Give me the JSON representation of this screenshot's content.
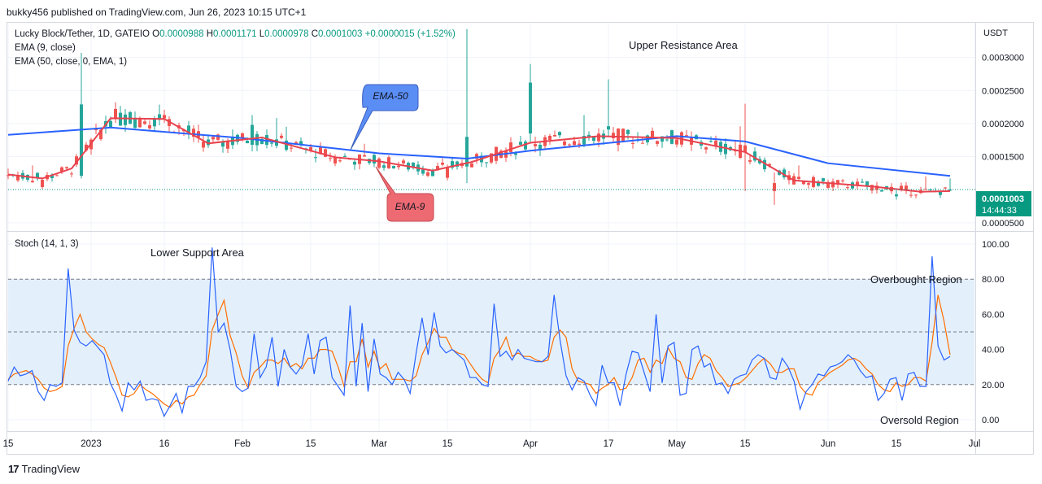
{
  "header": {
    "publisher": "bukky456 published on TradingView.com, Jun 26, 2023 10:15 UTC+1"
  },
  "legend": {
    "symbol": "Lucky Block/Tether, 1D, GATEIO",
    "o_label": "O",
    "o_value": "0.0000988",
    "h_label": "H",
    "h_value": "0.0001171",
    "l_label": "L",
    "l_value": "0.0000978",
    "c_label": "C",
    "c_value": "0.0001003",
    "change": "+0.0000015 (+1.52%)",
    "ema9": "EMA (9, close)",
    "ema50": "EMA (50, close, 0, EMA, 1)",
    "stoch": "Stoch (14, 1, 3)"
  },
  "annotations": {
    "upper": "Upper Resistance Area",
    "lower": "Lower Support Area",
    "overbought": "Overbought Region",
    "oversold": "Oversold Region",
    "ema50_callout": "EMA-50",
    "ema9_callout": "EMA-9"
  },
  "price_axis": {
    "currency": "USDT",
    "labels": [
      "0.0003000",
      "0.0002500",
      "0.0002000",
      "0.0001500",
      "0.0000500"
    ],
    "last_price": "0.0001003",
    "countdown": "14:44:33"
  },
  "stoch_axis": {
    "labels": [
      "100.00",
      "80.00",
      "60.00",
      "40.00",
      "20.00",
      "0.00"
    ]
  },
  "time_axis": {
    "labels": [
      "15",
      "2023",
      "16",
      "Feb",
      "15",
      "Mar",
      "15",
      "Apr",
      "17",
      "May",
      "15",
      "Jun",
      "15",
      "Jul"
    ]
  },
  "footer": {
    "brand": "TradingView"
  },
  "colors": {
    "up": "#26a69a",
    "down": "#ef5350",
    "ema9": "#e8424f",
    "ema50": "#2962ff",
    "stochK": "#2962ff",
    "stochD": "#ff6d00",
    "band": "#e3f0fb",
    "lastPrice": "#089981"
  },
  "chart_data": [
    {
      "type": "candlestick",
      "title": "Lucky Block/Tether, 1D, GATEIO",
      "ylabel": "USDT",
      "ylim": [
        4e-05,
        0.00035
      ],
      "x_range": [
        "2022-12-15",
        "2023-07-01"
      ],
      "x_ticks": [
        "Dec 15",
        "2023",
        "Jan 16",
        "Feb",
        "Feb 15",
        "Mar",
        "Mar 15",
        "Apr",
        "Apr 17",
        "May",
        "May 15",
        "Jun",
        "Jun 15",
        "Jul"
      ],
      "ohlc_anchors": [
        {
          "date": "2022-12-15",
          "o": 0.000122,
          "h": 0.000132,
          "l": 0.000116,
          "c": 0.000121
        },
        {
          "date": "2022-12-22",
          "o": 0.000115,
          "h": 0.000118,
          "l": 0.000101,
          "c": 0.000104
        },
        {
          "date": "2022-12-30",
          "o": 0.000121,
          "h": 0.000307,
          "l": 0.000117,
          "c": 0.000229
        },
        {
          "date": "2023-01-16",
          "o": 0.000213,
          "h": 0.000221,
          "l": 0.000201,
          "c": 0.000208
        },
        {
          "date": "2023-02-03",
          "o": 0.000168,
          "h": 0.000213,
          "l": 0.000158,
          "c": 0.000198
        },
        {
          "date": "2023-03-15",
          "o": 0.000133,
          "h": 0.000138,
          "l": 0.000114,
          "c": 0.000118
        },
        {
          "date": "2023-03-19",
          "o": 0.000135,
          "h": 0.000343,
          "l": 0.00011,
          "c": 0.00018
        },
        {
          "date": "2023-04-01",
          "o": 0.000185,
          "h": 0.00029,
          "l": 0.00017,
          "c": 0.000262
        },
        {
          "date": "2023-04-17",
          "o": 0.000191,
          "h": 0.000267,
          "l": 0.00018,
          "c": 0.000196
        },
        {
          "date": "2023-05-15",
          "o": 0.000167,
          "h": 0.00023,
          "l": 9.8e-05,
          "c": 0.000157
        },
        {
          "date": "2023-05-21",
          "o": 0.00011,
          "h": 0.000126,
          "l": 7.7e-05,
          "c": 9.8e-05
        },
        {
          "date": "2023-06-15",
          "o": 9e-05,
          "h": 9.9e-05,
          "l": 8.5e-05,
          "c": 9.3e-05
        },
        {
          "date": "2023-06-26",
          "o": 9.88e-05,
          "h": 0.0001171,
          "l": 9.78e-05,
          "c": 0.0001003
        }
      ],
      "ema9": [
        {
          "date": "2022-12-15",
          "v": 0.000123
        },
        {
          "date": "2022-12-22",
          "v": 0.000117
        },
        {
          "date": "2022-12-28",
          "v": 0.000132
        },
        {
          "date": "2023-01-05",
          "v": 0.000208
        },
        {
          "date": "2023-01-16",
          "v": 0.000207
        },
        {
          "date": "2023-01-25",
          "v": 0.00017
        },
        {
          "date": "2023-02-05",
          "v": 0.000179
        },
        {
          "date": "2023-02-20",
          "v": 0.000149
        },
        {
          "date": "2023-03-01",
          "v": 0.000143
        },
        {
          "date": "2023-03-12",
          "v": 0.000129
        },
        {
          "date": "2023-03-20",
          "v": 0.000142
        },
        {
          "date": "2023-04-01",
          "v": 0.000171
        },
        {
          "date": "2023-04-15",
          "v": 0.000181
        },
        {
          "date": "2023-05-01",
          "v": 0.000178
        },
        {
          "date": "2023-05-15",
          "v": 0.000157
        },
        {
          "date": "2023-05-25",
          "v": 0.000114
        },
        {
          "date": "2023-06-10",
          "v": 0.000105
        },
        {
          "date": "2023-06-20",
          "v": 9.7e-05
        },
        {
          "date": "2023-06-26",
          "v": 9.8e-05
        }
      ],
      "ema50": [
        {
          "date": "2022-12-15",
          "v": 0.000183
        },
        {
          "date": "2023-01-05",
          "v": 0.000194
        },
        {
          "date": "2023-02-01",
          "v": 0.000178
        },
        {
          "date": "2023-03-01",
          "v": 0.000155
        },
        {
          "date": "2023-03-19",
          "v": 0.000147
        },
        {
          "date": "2023-04-01",
          "v": 0.000159
        },
        {
          "date": "2023-05-01",
          "v": 0.000181
        },
        {
          "date": "2023-05-15",
          "v": 0.000173
        },
        {
          "date": "2023-06-01",
          "v": 0.00014
        },
        {
          "date": "2023-06-26",
          "v": 0.000121
        }
      ]
    },
    {
      "type": "line",
      "title": "Stoch (14, 1, 3)",
      "ylim": [
        0,
        100
      ],
      "bands": [
        20,
        50,
        80
      ],
      "series": [
        {
          "name": "%K",
          "values": [
            22,
            30,
            25,
            26,
            28,
            16,
            11,
            20,
            19,
            21,
            86,
            51,
            44,
            42,
            45,
            41,
            37,
            21,
            14,
            5,
            21,
            17,
            22,
            11,
            12,
            11,
            2,
            8,
            15,
            4,
            19,
            19,
            24,
            33,
            98,
            50,
            55,
            40,
            19,
            16,
            18,
            49,
            24,
            30,
            47,
            19,
            40,
            30,
            26,
            31,
            49,
            26,
            45,
            47,
            24,
            19,
            14,
            65,
            19,
            55,
            16,
            46,
            26,
            24,
            20,
            27,
            23,
            15,
            38,
            58,
            37,
            61,
            42,
            38,
            40,
            37,
            34,
            24,
            24,
            20,
            19,
            66,
            36,
            39,
            34,
            40,
            35,
            34,
            33,
            33,
            36,
            71,
            45,
            25,
            17,
            24,
            22,
            14,
            8,
            31,
            21,
            21,
            8,
            26,
            39,
            38,
            27,
            16,
            60,
            21,
            42,
            44,
            14,
            15,
            40,
            42,
            30,
            32,
            20,
            21,
            15,
            23,
            25,
            26,
            34,
            37,
            35,
            24,
            23,
            35,
            30,
            22,
            6,
            16,
            20,
            26,
            25,
            30,
            31,
            33,
            37,
            34,
            28,
            24,
            25,
            11,
            15,
            23,
            24,
            11,
            26,
            27,
            19,
            19,
            93,
            42,
            34,
            36
          ]
        },
        {
          "name": "%D",
          "values": [
            23,
            26,
            27,
            28,
            26,
            23,
            18,
            16,
            17,
            19,
            42,
            52,
            60,
            50,
            46,
            43,
            41,
            33,
            24,
            14,
            13,
            15,
            20,
            17,
            15,
            12,
            9,
            7,
            11,
            9,
            13,
            14,
            20,
            25,
            51,
            60,
            68,
            48,
            38,
            25,
            18,
            27,
            30,
            34,
            34,
            32,
            35,
            30,
            32,
            29,
            35,
            35,
            40,
            40,
            39,
            30,
            19,
            33,
            33,
            46,
            30,
            39,
            29,
            32,
            23,
            23,
            23,
            22,
            25,
            37,
            44,
            52,
            47,
            47,
            40,
            38,
            37,
            32,
            27,
            23,
            21,
            35,
            40,
            47,
            36,
            38,
            36,
            36,
            34,
            33,
            34,
            47,
            51,
            47,
            29,
            22,
            21,
            20,
            15,
            18,
            20,
            24,
            17,
            18,
            24,
            34,
            35,
            27,
            34,
            32,
            41,
            35,
            33,
            24,
            23,
            32,
            37,
            35,
            28,
            24,
            19,
            20,
            21,
            24,
            28,
            32,
            35,
            32,
            27,
            27,
            29,
            29,
            19,
            15,
            14,
            21,
            24,
            27,
            29,
            31,
            34,
            35,
            33,
            29,
            26,
            20,
            17,
            16,
            21,
            19,
            20,
            24,
            24,
            22,
            44,
            71,
            56,
            37
          ]
        }
      ]
    }
  ]
}
